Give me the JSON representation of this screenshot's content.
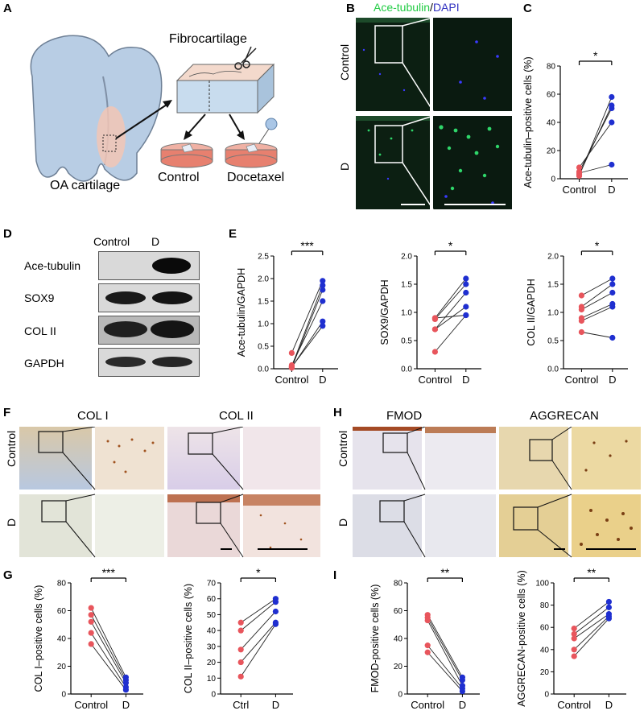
{
  "panels": {
    "A": "A",
    "B": "B",
    "C": "C",
    "D": "D",
    "E": "E",
    "F": "F",
    "G": "G",
    "H": "H",
    "I": "I"
  },
  "panelA": {
    "fibro": "Fibrocartilage",
    "oa": "OA cartilage",
    "control": "Control",
    "docetaxel": "Docetaxel"
  },
  "panelB": {
    "title_green": "Ace-tubulin",
    "title_sep": "/",
    "title_blue": "DAPI",
    "row1": "Control",
    "row2": "D"
  },
  "panelD": {
    "col1": "Control",
    "col2": "D",
    "rows": [
      "Ace-tubulin",
      "SOX9",
      "COL II",
      "GAPDH"
    ]
  },
  "panelF": {
    "col1": "COL I",
    "col2": "COL II",
    "row1": "Control",
    "row2": "D"
  },
  "panelH": {
    "col1": "FMOD",
    "col2": "AGGRECAN",
    "row1": "Control",
    "row2": "D"
  },
  "colors": {
    "control": "#e8555c",
    "d": "#1f2fd0",
    "green": "#22cc44",
    "blue": "#3030c0"
  },
  "chart_data": [
    {
      "id": "C",
      "type": "scatter",
      "ylabel": "Ace-tubulin–positive cells (%)",
      "categories": [
        "Control",
        "D"
      ],
      "ylim": [
        0,
        80
      ],
      "yticks": [
        0,
        20,
        40,
        60,
        80
      ],
      "sig": "*",
      "pairs": [
        [
          2,
          58
        ],
        [
          5,
          50
        ],
        [
          8,
          40
        ],
        [
          4,
          10
        ],
        [
          3,
          52
        ]
      ]
    },
    {
      "id": "E1",
      "type": "scatter",
      "ylabel": "Ace-tubulin/GAPDH",
      "categories": [
        "Control",
        "D"
      ],
      "ylim": [
        0,
        2.5
      ],
      "yticks": [
        "0.0",
        "0.5",
        "1.0",
        "1.5",
        "2.0",
        "2.5"
      ],
      "sig": "***",
      "pairs": [
        [
          0.35,
          1.95
        ],
        [
          0.05,
          1.85
        ],
        [
          0.02,
          1.75
        ],
        [
          0.08,
          1.5
        ],
        [
          0.03,
          1.05
        ],
        [
          0.04,
          0.95
        ]
      ]
    },
    {
      "id": "E2",
      "type": "scatter",
      "ylabel": "SOX9/GAPDH",
      "categories": [
        "Control",
        "D"
      ],
      "ylim": [
        0,
        2.0
      ],
      "yticks": [
        "0.0",
        "0.5",
        "1.0",
        "1.5",
        "2.0"
      ],
      "sig": "*",
      "pairs": [
        [
          0.9,
          1.6
        ],
        [
          0.88,
          1.5
        ],
        [
          0.7,
          1.35
        ],
        [
          0.7,
          1.1
        ],
        [
          0.9,
          0.95
        ],
        [
          0.3,
          0.95
        ]
      ]
    },
    {
      "id": "E3",
      "type": "scatter",
      "ylabel": "COL II/GAPDH",
      "categories": [
        "Control",
        "D"
      ],
      "ylim": [
        0,
        2.0
      ],
      "yticks": [
        "0.0",
        "0.5",
        "1.0",
        "1.5",
        "2.0"
      ],
      "sig": "*",
      "pairs": [
        [
          1.3,
          1.6
        ],
        [
          1.1,
          1.5
        ],
        [
          1.05,
          1.35
        ],
        [
          0.9,
          1.15
        ],
        [
          0.85,
          1.1
        ],
        [
          0.65,
          0.55
        ]
      ]
    },
    {
      "id": "G1",
      "type": "scatter",
      "ylabel": "COL I–positive cells (%)",
      "categories": [
        "Control",
        "D"
      ],
      "ylim": [
        0,
        80
      ],
      "yticks": [
        0,
        20,
        40,
        60,
        80
      ],
      "sig": "***",
      "pairs": [
        [
          62,
          12
        ],
        [
          57,
          10
        ],
        [
          52,
          8
        ],
        [
          44,
          5
        ],
        [
          36,
          3
        ]
      ]
    },
    {
      "id": "G2",
      "type": "scatter",
      "ylabel": "COL II–positive cells (%)",
      "categories": [
        "Ctrl",
        "D"
      ],
      "ylim": [
        0,
        70
      ],
      "yticks": [
        0,
        10,
        20,
        30,
        40,
        50,
        60,
        70
      ],
      "sig": "*",
      "pairs": [
        [
          45,
          60
        ],
        [
          40,
          58
        ],
        [
          28,
          52
        ],
        [
          20,
          45
        ],
        [
          11,
          44
        ]
      ]
    },
    {
      "id": "I1",
      "type": "scatter",
      "ylabel": "FMOD-positive cells (%)",
      "categories": [
        "Control",
        "D"
      ],
      "ylim": [
        0,
        80
      ],
      "yticks": [
        0,
        20,
        40,
        60,
        80
      ],
      "sig": "**",
      "pairs": [
        [
          57,
          12
        ],
        [
          55,
          10
        ],
        [
          53,
          6
        ],
        [
          35,
          4
        ],
        [
          30,
          2
        ]
      ]
    },
    {
      "id": "I2",
      "type": "scatter",
      "ylabel": "AGGRECAN-positive cells (%)",
      "categories": [
        "Control",
        "D"
      ],
      "ylim": [
        0,
        100
      ],
      "yticks": [
        0,
        20,
        40,
        60,
        80,
        100
      ],
      "sig": "**",
      "pairs": [
        [
          59,
          83
        ],
        [
          54,
          78
        ],
        [
          50,
          72
        ],
        [
          40,
          70
        ],
        [
          34,
          68
        ]
      ]
    }
  ]
}
